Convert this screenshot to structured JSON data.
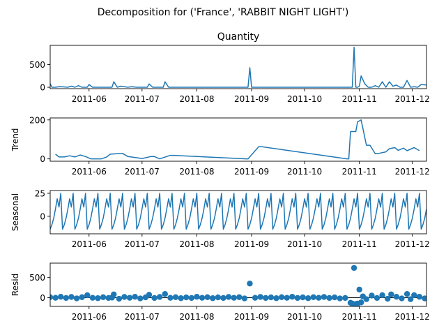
{
  "figure": {
    "suptitle": "Decomposition for ('France', 'RABBIT NIGHT LIGHT')",
    "line_color": "#1f77b4",
    "x_ticks": [
      "2011-06",
      "2011-07",
      "2011-08",
      "2011-09",
      "2011-10",
      "2011-11",
      "2011-12"
    ]
  },
  "chart_data": [
    {
      "type": "line",
      "title": "Quantity",
      "ylabel": "",
      "ylim": [
        -30,
        920
      ],
      "yticks": [
        0,
        500
      ],
      "xlim": [
        "2011-05-10",
        "2011-12-09"
      ],
      "x": [
        "2011-05-10",
        "2011-05-11",
        "2011-05-13",
        "2011-05-15",
        "2011-05-17",
        "2011-05-20",
        "2011-05-22",
        "2011-05-24",
        "2011-05-26",
        "2011-05-28",
        "2011-05-31",
        "2011-06-01",
        "2011-06-03",
        "2011-06-06",
        "2011-06-09",
        "2011-06-12",
        "2011-06-14",
        "2011-06-15",
        "2011-06-17",
        "2011-06-19",
        "2011-06-21",
        "2011-06-23",
        "2011-06-25",
        "2011-06-28",
        "2011-07-02",
        "2011-07-04",
        "2011-07-05",
        "2011-07-07",
        "2011-07-10",
        "2011-07-12",
        "2011-07-13",
        "2011-07-14",
        "2011-07-16",
        "2011-08-30",
        "2011-08-31",
        "2011-09-01",
        "2011-10-27",
        "2011-10-28",
        "2011-10-29",
        "2011-10-30",
        "2011-10-31",
        "2011-11-01",
        "2011-11-02",
        "2011-11-04",
        "2011-11-06",
        "2011-11-08",
        "2011-11-10",
        "2011-11-12",
        "2011-11-14",
        "2011-11-16",
        "2011-11-18",
        "2011-11-20",
        "2011-11-22",
        "2011-11-24",
        "2011-11-26",
        "2011-11-28",
        "2011-11-30",
        "2011-12-02",
        "2011-12-04",
        "2011-12-06",
        "2011-12-09"
      ],
      "values": [
        80,
        0,
        0,
        12,
        10,
        0,
        24,
        0,
        36,
        0,
        0,
        60,
        0,
        0,
        0,
        0,
        0,
        120,
        0,
        24,
        12,
        0,
        12,
        0,
        0,
        0,
        72,
        0,
        0,
        0,
        0,
        120,
        0,
        0,
        430,
        0,
        0,
        0,
        880,
        0,
        0,
        24,
        250,
        80,
        0,
        0,
        36,
        0,
        120,
        0,
        120,
        24,
        48,
        0,
        0,
        150,
        0,
        12,
        0,
        60,
        50
      ]
    },
    {
      "type": "line",
      "title": "",
      "ylabel": "Trend",
      "ylim": [
        -12,
        210
      ],
      "yticks": [
        0,
        200
      ],
      "xlim": [
        "2011-05-10",
        "2011-12-09"
      ],
      "x": [
        "2011-05-13",
        "2011-05-15",
        "2011-05-18",
        "2011-05-21",
        "2011-05-24",
        "2011-05-27",
        "2011-05-30",
        "2011-06-02",
        "2011-06-08",
        "2011-06-11",
        "2011-06-13",
        "2011-06-20",
        "2011-06-23",
        "2011-06-28",
        "2011-07-01",
        "2011-07-06",
        "2011-07-08",
        "2011-07-11",
        "2011-07-17",
        "2011-07-19",
        "2011-08-29",
        "2011-08-30",
        "2011-09-05",
        "2011-09-07",
        "2011-10-25",
        "2011-10-26",
        "2011-10-27",
        "2011-10-30",
        "2011-10-31",
        "2011-11-02",
        "2011-11-05",
        "2011-11-07",
        "2011-11-10",
        "2011-11-12",
        "2011-11-16",
        "2011-11-18",
        "2011-11-21",
        "2011-11-23",
        "2011-11-26",
        "2011-11-28",
        "2011-12-02",
        "2011-12-05"
      ],
      "values": [
        24,
        10,
        10,
        16,
        10,
        20,
        12,
        0,
        0,
        10,
        24,
        28,
        12,
        6,
        2,
        12,
        12,
        0,
        18,
        18,
        0,
        0,
        62,
        62,
        0,
        0,
        140,
        140,
        190,
        200,
        70,
        70,
        26,
        28,
        36,
        52,
        58,
        44,
        55,
        42,
        58,
        42
      ]
    },
    {
      "type": "line",
      "title": "",
      "ylabel": "Seasonal",
      "ylim": [
        -19,
        28
      ],
      "yticks": [
        0,
        25
      ],
      "xlim": [
        "2011-05-10",
        "2011-12-09"
      ],
      "period_days": 7,
      "pattern": [
        -14,
        -9,
        -2,
        8,
        19,
        10,
        25
      ],
      "x_start": "2011-05-10",
      "x_end": "2011-12-09"
    },
    {
      "type": "scatter",
      "title": "",
      "ylabel": "Resid",
      "ylim": [
        -220,
        860
      ],
      "yticks": [
        0,
        500
      ],
      "xlim": [
        "2011-05-10",
        "2011-12-09"
      ],
      "x": [
        "2011-05-10",
        "2011-05-13",
        "2011-05-16",
        "2011-05-19",
        "2011-05-22",
        "2011-05-25",
        "2011-05-28",
        "2011-05-31",
        "2011-06-03",
        "2011-06-06",
        "2011-06-09",
        "2011-06-12",
        "2011-06-14",
        "2011-06-15",
        "2011-06-18",
        "2011-06-21",
        "2011-06-24",
        "2011-06-27",
        "2011-06-30",
        "2011-07-03",
        "2011-07-05",
        "2011-07-08",
        "2011-07-11",
        "2011-07-14",
        "2011-07-17",
        "2011-07-20",
        "2011-07-23",
        "2011-07-26",
        "2011-07-29",
        "2011-08-01",
        "2011-08-04",
        "2011-08-07",
        "2011-08-10",
        "2011-08-13",
        "2011-08-16",
        "2011-08-19",
        "2011-08-22",
        "2011-08-25",
        "2011-08-28",
        "2011-08-31",
        "2011-09-03",
        "2011-09-06",
        "2011-09-09",
        "2011-09-12",
        "2011-09-15",
        "2011-09-18",
        "2011-09-21",
        "2011-09-24",
        "2011-09-27",
        "2011-09-30",
        "2011-10-03",
        "2011-10-06",
        "2011-10-09",
        "2011-10-12",
        "2011-10-15",
        "2011-10-18",
        "2011-10-21",
        "2011-10-24",
        "2011-10-27",
        "2011-10-28",
        "2011-10-29",
        "2011-10-30",
        "2011-10-31",
        "2011-11-01",
        "2011-11-02",
        "2011-11-03",
        "2011-11-05",
        "2011-11-08",
        "2011-11-11",
        "2011-11-14",
        "2011-11-17",
        "2011-11-19",
        "2011-11-22",
        "2011-11-25",
        "2011-11-28",
        "2011-11-30",
        "2011-12-02",
        "2011-12-05",
        "2011-12-08"
      ],
      "values": [
        10,
        -5,
        20,
        -10,
        15,
        -20,
        10,
        60,
        -5,
        -15,
        10,
        -10,
        0,
        80,
        -30,
        15,
        -5,
        20,
        -20,
        5,
        70,
        -10,
        15,
        90,
        -5,
        10,
        -15,
        5,
        -10,
        20,
        -5,
        10,
        -15,
        5,
        -10,
        15,
        -5,
        10,
        -20,
        350,
        -5,
        15,
        -10,
        5,
        -15,
        10,
        -5,
        20,
        -10,
        5,
        -15,
        10,
        -5,
        15,
        -10,
        5,
        -20,
        -10,
        -130,
        -150,
        740,
        -160,
        -150,
        200,
        -120,
        30,
        -40,
        50,
        -10,
        60,
        -30,
        80,
        20,
        -20,
        90,
        -40,
        60,
        20,
        -20
      ]
    }
  ]
}
